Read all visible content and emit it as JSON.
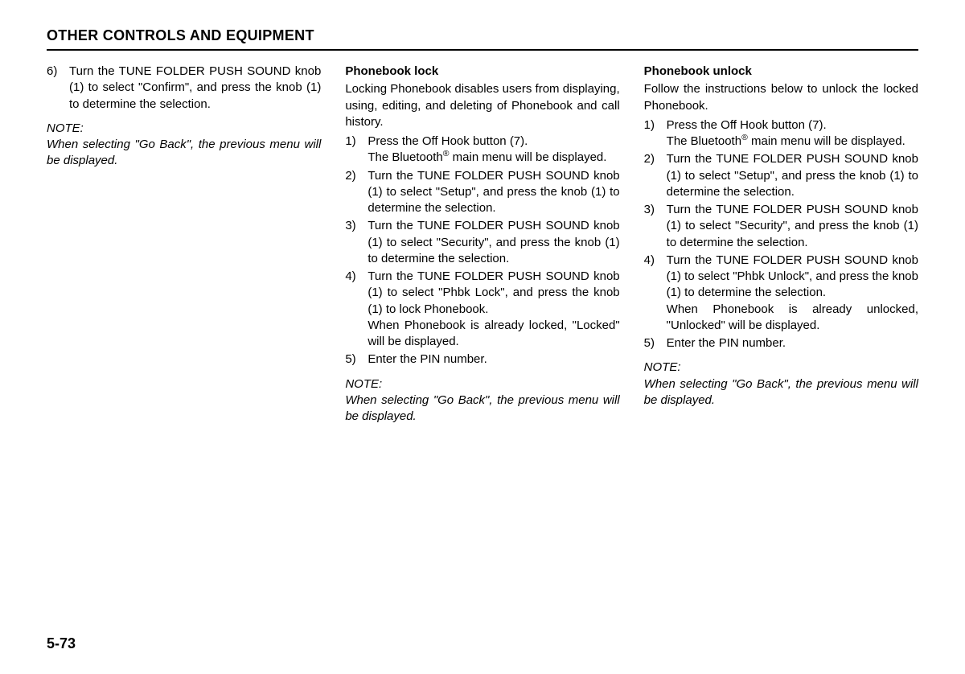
{
  "page": {
    "header": "OTHER CONTROLS AND EQUIPMENT",
    "page_number": "5-73",
    "background_color": "#ffffff",
    "text_color": "#000000",
    "header_fontsize": 18,
    "body_fontsize": 15,
    "font_family": "Arial, Helvetica, sans-serif",
    "border_color": "#000000"
  },
  "col1": {
    "item6_num": "6)",
    "item6_txt": "Turn the TUNE FOLDER PUSH SOUND knob (1) to select \"Confirm\", and press the knob (1) to determine the selection.",
    "note_label": "NOTE:",
    "note_body": "When selecting \"Go Back\", the previous menu will be displayed."
  },
  "col2": {
    "heading": "Phonebook lock",
    "intro": "Locking Phonebook disables users from displaying, using, editing, and deleting of Phonebook and call history.",
    "i1_num": "1)",
    "i1_txt": "Press the Off Hook button (7).",
    "i1_cont_a": "The Bluetooth",
    "i1_cont_b": " main menu will be displayed.",
    "i2_num": "2)",
    "i2_txt": "Turn the TUNE FOLDER PUSH SOUND knob (1) to select \"Setup\", and press the knob (1) to determine the selection.",
    "i3_num": "3)",
    "i3_txt": "Turn the TUNE FOLDER PUSH SOUND knob (1) to select \"Security\", and press the knob (1) to determine the selection.",
    "i4_num": "4)",
    "i4_txt": "Turn the TUNE FOLDER PUSH SOUND knob (1) to select \"Phbk Lock\", and press the knob (1) to lock Phonebook.",
    "i4_cont": "When Phonebook is already locked, \"Locked\" will be displayed.",
    "i5_num": "5)",
    "i5_txt": "Enter the PIN number.",
    "note_label": "NOTE:",
    "note_body": "When selecting \"Go Back\", the previous menu will be displayed."
  },
  "col3": {
    "heading": "Phonebook unlock",
    "intro": "Follow the instructions below to unlock the locked Phonebook.",
    "i1_num": "1)",
    "i1_txt": "Press the Off Hook button (7).",
    "i1_cont_a": "The Bluetooth",
    "i1_cont_b": " main menu will be displayed.",
    "i2_num": "2)",
    "i2_txt": "Turn the TUNE FOLDER PUSH SOUND knob (1) to select \"Setup\", and press the knob (1) to determine the selection.",
    "i3_num": "3)",
    "i3_txt": "Turn the TUNE FOLDER PUSH SOUND knob (1) to select \"Security\", and press the knob (1) to determine the selection.",
    "i4_num": "4)",
    "i4_txt": "Turn the TUNE FOLDER PUSH SOUND knob (1) to select \"Phbk Unlock\", and press the knob (1) to determine the selection.",
    "i4_cont": "When Phonebook is already unlocked, \"Unlocked\" will be displayed.",
    "i5_num": "5)",
    "i5_txt": "Enter the PIN number.",
    "note_label": "NOTE:",
    "note_body": "When selecting \"Go Back\", the previous menu will be displayed."
  }
}
